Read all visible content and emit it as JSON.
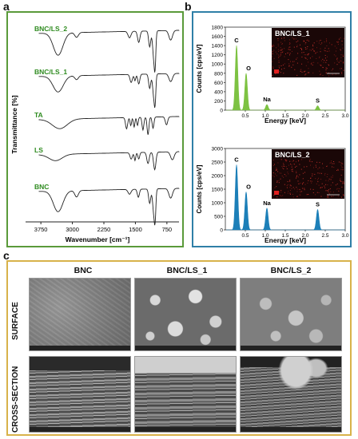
{
  "panels": {
    "a": {
      "letter": "a",
      "chart_data": {
        "type": "line",
        "xlabel": "Wavenumber [cm⁻¹]",
        "ylabel": "Transmittance [%]",
        "xlim": [
          4000,
          500
        ],
        "x_ticks": [
          "3750",
          "3000",
          "2250",
          "1500",
          "750"
        ],
        "x_tick_values": [
          3750,
          3000,
          2250,
          1500,
          750
        ],
        "series": [
          {
            "name": "BNC/LS_2",
            "color": "#2e8b1f"
          },
          {
            "name": "BNC/LS_1",
            "color": "#2e8b1f"
          },
          {
            "name": "TA",
            "color": "#2e8b1f"
          },
          {
            "name": "LS",
            "color": "#2e8b1f"
          },
          {
            "name": "BNC",
            "color": "#2e8b1f"
          }
        ]
      }
    },
    "b": {
      "letter": "b",
      "charts": [
        {
          "type": "bar",
          "title": "BNC/LS_1",
          "ylabel": "Counts [cps/eV]",
          "xlabel": "Energy [keV]",
          "ylim": [
            0,
            1800
          ],
          "y_ticks": [
            "0",
            "200",
            "400",
            "600",
            "800",
            "1000",
            "1200",
            "1400",
            "1600",
            "1800"
          ],
          "y_tick_values": [
            0,
            200,
            400,
            600,
            800,
            1000,
            1200,
            1400,
            1600,
            1800
          ],
          "xlim": [
            0,
            3.0
          ],
          "x_ticks": [
            "0.5",
            "1.0",
            "1.5",
            "2.0",
            "2.5",
            "3.0"
          ],
          "x_tick_values": [
            0.5,
            1.0,
            1.5,
            2.0,
            2.5,
            3.0
          ],
          "color": "#7dc242",
          "peaks": [
            {
              "label": "C",
              "x": 0.28,
              "y": 1400
            },
            {
              "label": "O",
              "x": 0.52,
              "y": 800
            },
            {
              "label": "Na",
              "x": 1.04,
              "y": 120
            },
            {
              "label": "S",
              "x": 2.31,
              "y": 95
            }
          ]
        },
        {
          "type": "bar",
          "title": "BNC/LS_2",
          "ylabel": "Counts [cps/eV]",
          "xlabel": "Energy [keV]",
          "ylim": [
            0,
            3000
          ],
          "y_ticks": [
            "0",
            "500",
            "1000",
            "1500",
            "2000",
            "2500",
            "3000"
          ],
          "y_tick_values": [
            0,
            500,
            1000,
            1500,
            2000,
            2500,
            3000
          ],
          "xlim": [
            0,
            3.0
          ],
          "x_ticks": [
            "0.5",
            "1.0",
            "1.5",
            "2.0",
            "2.5",
            "3.0"
          ],
          "x_tick_values": [
            0.5,
            1.0,
            1.5,
            2.0,
            2.5,
            3.0
          ],
          "color": "#1c7fb8",
          "peaks": [
            {
              "label": "C",
              "x": 0.28,
              "y": 2400
            },
            {
              "label": "O",
              "x": 0.52,
              "y": 1400
            },
            {
              "label": "Na",
              "x": 1.04,
              "y": 800
            },
            {
              "label": "S",
              "x": 2.31,
              "y": 750
            }
          ]
        }
      ]
    },
    "c": {
      "letter": "c",
      "columns": [
        "BNC",
        "BNC/LS_1",
        "BNC/LS_2"
      ],
      "rows": [
        "SURFACE",
        "CROSS-SECTION"
      ]
    }
  }
}
